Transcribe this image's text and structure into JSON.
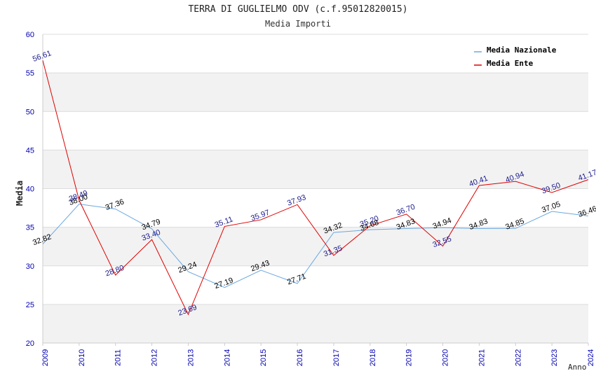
{
  "chart_data": {
    "type": "line",
    "title": "TERRA DI GUGLIELMO ODV (c.f.95012820015)",
    "subtitle": "Media Importi",
    "xlabel": "Anno",
    "ylabel": "Media",
    "ylim": [
      20,
      60
    ],
    "y_ticks": [
      "20",
      "25",
      "30",
      "35",
      "40",
      "45",
      "50",
      "55",
      "60"
    ],
    "categories": [
      "2009",
      "2010",
      "2011",
      "2012",
      "2013",
      "2014",
      "2015",
      "2016",
      "2017",
      "2018",
      "2019",
      "2020",
      "2021",
      "2022",
      "2023",
      "2024"
    ],
    "legend_position": "top-right",
    "grid": true,
    "series": [
      {
        "name": "Media Nazionale",
        "color": "#6aa8e0",
        "label_color": "#000000",
        "values": [
          32.82,
          38.0,
          37.36,
          34.79,
          29.24,
          27.19,
          29.43,
          27.71,
          34.32,
          34.68,
          34.83,
          34.94,
          34.83,
          34.85,
          37.05,
          36.46
        ],
        "labels": [
          "32.82",
          "38.00",
          "37.36",
          "34.79",
          "29.24",
          "27.19",
          "29.43",
          "27.71",
          "34.32",
          "34.68",
          "34.83",
          "34.94",
          "34.83",
          "34.85",
          "37.05",
          "36.46"
        ]
      },
      {
        "name": "Media Ente",
        "color": "#e00000",
        "label_color": "#1a1a8c",
        "values": [
          56.61,
          38.49,
          28.8,
          33.4,
          23.69,
          35.11,
          35.97,
          37.93,
          31.35,
          35.2,
          36.7,
          32.55,
          40.41,
          40.94,
          39.5,
          41.17
        ],
        "labels": [
          "56.61",
          "38.49",
          "28.80",
          "33.40",
          "23.69",
          "35.11",
          "35.97",
          "37.93",
          "31.35",
          "35.20",
          "36.70",
          "32.55",
          "40.41",
          "40.94",
          "39.50",
          "41.17"
        ]
      }
    ]
  }
}
